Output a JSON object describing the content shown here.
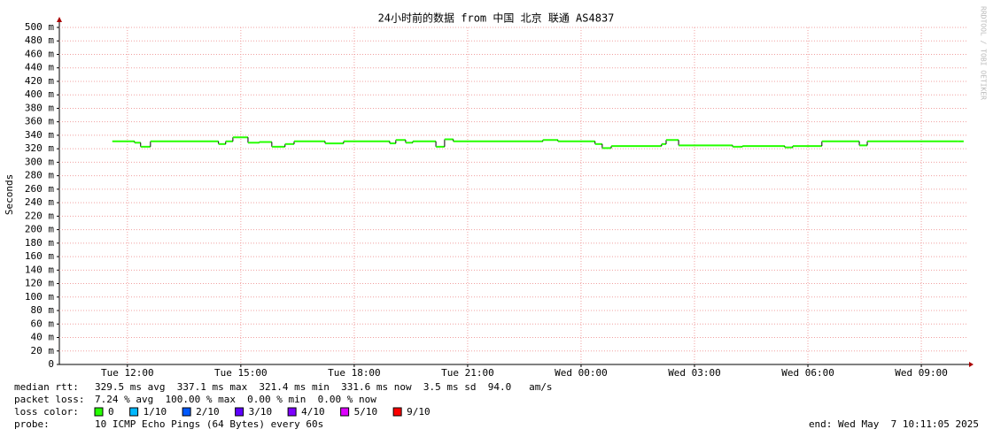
{
  "chart_data": {
    "type": "step-line",
    "title": "24小时前的数据 from 中国 北京 联通 AS4837",
    "y_label": "Seconds",
    "watermark": "RRDTOOL / TOBI OETIKER",
    "color": "#26ff00",
    "xlim": [
      10.2,
      34.24
    ],
    "xticks": [
      {
        "value": 12,
        "label": "Tue 12:00"
      },
      {
        "value": 15,
        "label": "Tue 15:00"
      },
      {
        "value": 18,
        "label": "Tue 18:00"
      },
      {
        "value": 21,
        "label": "Tue 21:00"
      },
      {
        "value": 24,
        "label": "Wed 00:00"
      },
      {
        "value": 27,
        "label": "Wed 03:00"
      },
      {
        "value": 30,
        "label": "Wed 06:00"
      },
      {
        "value": 33,
        "label": "Wed 09:00"
      }
    ],
    "ylim": [
      0,
      0.5
    ],
    "yticks": [
      0,
      {
        "value": 0.02,
        "label": "20 m"
      },
      {
        "value": 0.04,
        "label": "40 m"
      },
      {
        "value": 0.06,
        "label": "60 m"
      },
      {
        "value": 0.08,
        "label": "80 m"
      },
      {
        "value": 0.1,
        "label": "100 m"
      },
      {
        "value": 0.12,
        "label": "120 m"
      },
      {
        "value": 0.14,
        "label": "140 m"
      },
      {
        "value": 0.16,
        "label": "160 m"
      },
      {
        "value": 0.18,
        "label": "180 m"
      },
      {
        "value": 0.2,
        "label": "200 m"
      },
      {
        "value": 0.22,
        "label": "220 m"
      },
      {
        "value": 0.24,
        "label": "240 m"
      },
      {
        "value": 0.26,
        "label": "260 m"
      },
      {
        "value": 0.28,
        "label": "280 m"
      },
      {
        "value": 0.3,
        "label": "300 m"
      },
      {
        "value": 0.32,
        "label": "320 m"
      },
      {
        "value": 0.34,
        "label": "340 m"
      },
      {
        "value": 0.36,
        "label": "360 m"
      },
      {
        "value": 0.38,
        "label": "380 m"
      },
      {
        "value": 0.4,
        "label": "400 m"
      },
      {
        "value": 0.42,
        "label": "420 m"
      },
      {
        "value": 0.44,
        "label": "440 m"
      },
      {
        "value": 0.46,
        "label": "460 m"
      },
      {
        "value": 0.48,
        "label": "480 m"
      },
      {
        "value": 0.5,
        "label": "500 m"
      }
    ],
    "grid": true,
    "x": [
      11.6,
      12.19,
      12.35,
      12.61,
      14.41,
      14.6,
      14.79,
      15.19,
      15.49,
      15.82,
      16.17,
      16.41,
      17.23,
      17.72,
      18.94,
      19.1,
      19.36,
      19.55,
      20.16,
      20.39,
      20.62,
      22.99,
      23.39,
      24.37,
      24.56,
      24.8,
      26.13,
      26.25,
      26.58,
      28.01,
      28.27,
      29.39,
      29.6,
      30.37,
      31.36,
      31.57,
      33.98
    ],
    "values": [
      0.331,
      0.329,
      0.323,
      0.331,
      0.327,
      0.331,
      0.337,
      0.329,
      0.33,
      0.323,
      0.327,
      0.331,
      0.328,
      0.331,
      0.328,
      0.333,
      0.329,
      0.331,
      0.323,
      0.334,
      0.331,
      0.333,
      0.331,
      0.327,
      0.321,
      0.324,
      0.327,
      0.333,
      0.325,
      0.323,
      0.324,
      0.322,
      0.324,
      0.331,
      0.325,
      0.331,
      0.331
    ]
  },
  "stats": {
    "median_rtt": {
      "label": "median rtt:",
      "text": "329.5 ms avg  337.1 ms max  321.4 ms min  331.6 ms now  3.5 ms sd  94.0   am/s"
    },
    "packet_loss": {
      "label": "packet loss:",
      "text": "7.24 % avg  100.00 % max  0.00 % min  0.00 % now"
    },
    "loss_color": {
      "label": "loss color:",
      "items": [
        {
          "label": "0",
          "color": "#26ff00"
        },
        {
          "label": "1/10",
          "color": "#00b8ff"
        },
        {
          "label": "2/10",
          "color": "#0059ff"
        },
        {
          "label": "3/10",
          "color": "#5e00ff"
        },
        {
          "label": "4/10",
          "color": "#7e00ff"
        },
        {
          "label": "5/10",
          "color": "#dd00ff"
        },
        {
          "label": "9/10",
          "color": "#ff0000"
        }
      ]
    },
    "probe": {
      "label": "probe:",
      "text": "10 ICMP Echo Pings (64 Bytes) every 60s"
    },
    "end": "end: Wed May  7 10:11:05 2025"
  }
}
